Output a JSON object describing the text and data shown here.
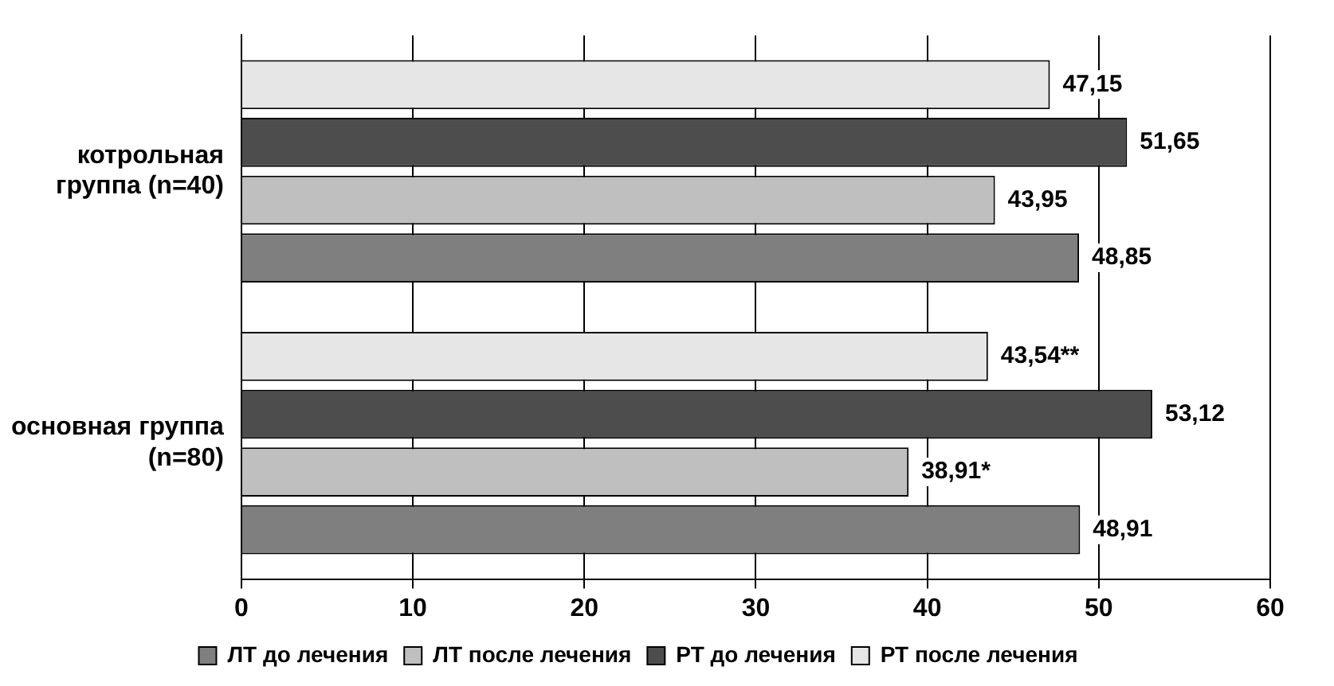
{
  "chart_data": {
    "type": "bar",
    "orientation": "horizontal",
    "categories": [
      "котрольная группа (n=40)",
      "основная группа (n=80)"
    ],
    "series": [
      {
        "name": "ЛТ до лечения",
        "color": "#7f7f7f",
        "values": [
          48.85,
          48.91
        ],
        "value_labels": [
          "48,85",
          "48,91"
        ]
      },
      {
        "name": "ЛТ после лечения",
        "color": "#bfbfbf",
        "values": [
          43.95,
          38.91
        ],
        "value_labels": [
          "43,95",
          "38,91*"
        ]
      },
      {
        "name": "РТ до лечения",
        "color": "#4d4d4d",
        "values": [
          51.65,
          53.12
        ],
        "value_labels": [
          "51,65",
          "53,12"
        ]
      },
      {
        "name": "РТ после лечения",
        "color": "#e6e6e6",
        "values": [
          47.15,
          43.54
        ],
        "value_labels": [
          "47,15",
          "43,54**"
        ]
      }
    ],
    "xlim": [
      0,
      60
    ],
    "xticks": [
      0,
      10,
      20,
      30,
      40,
      50,
      60
    ],
    "grid": "x",
    "legend": "bottom"
  }
}
